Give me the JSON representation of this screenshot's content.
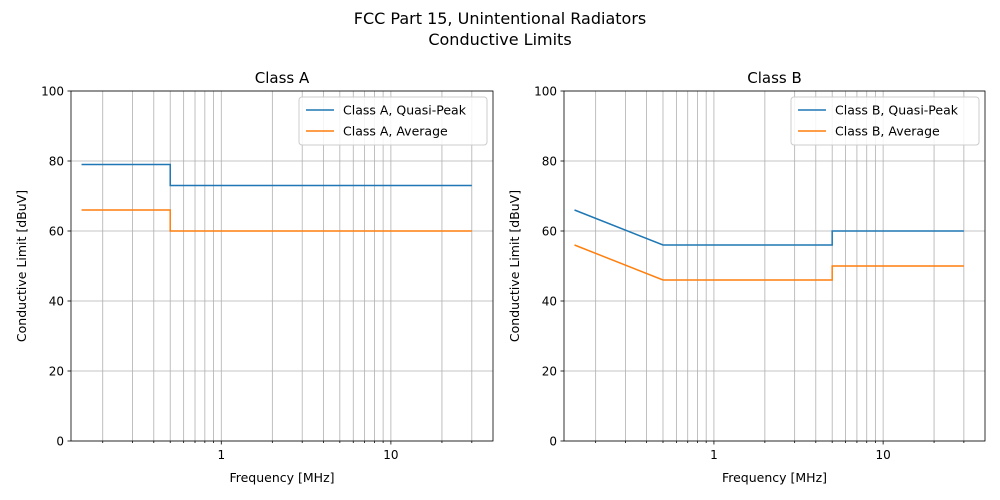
{
  "figure": {
    "title_line1": "FCC Part 15, Unintentional Radiators",
    "title_line2": "Conductive Limits"
  },
  "chart_data": [
    {
      "type": "line",
      "title": "Class A",
      "xlabel": "Frequency [MHz]",
      "ylabel": "Conductive Limit [dBuV]",
      "xscale": "log",
      "xlim": [
        0.13,
        40
      ],
      "ylim": [
        0,
        100
      ],
      "x_ticks": [
        1,
        10
      ],
      "x_tick_labels": [
        "1",
        "10"
      ],
      "y_ticks": [
        0,
        20,
        40,
        60,
        80,
        100
      ],
      "y_tick_labels": [
        "0",
        "20",
        "40",
        "60",
        "80",
        "100"
      ],
      "grid": true,
      "legend_position": "top-right",
      "series": [
        {
          "name": "Class A, Quasi-Peak",
          "color": "#1f77b4",
          "points": [
            [
              0.15,
              79
            ],
            [
              0.5,
              79
            ],
            [
              0.5,
              73
            ],
            [
              30,
              73
            ]
          ]
        },
        {
          "name": "Class A, Average",
          "color": "#ff7f0e",
          "points": [
            [
              0.15,
              66
            ],
            [
              0.5,
              66
            ],
            [
              0.5,
              60
            ],
            [
              30,
              60
            ]
          ]
        }
      ]
    },
    {
      "type": "line",
      "title": "Class B",
      "xlabel": "Frequency [MHz]",
      "ylabel": "Conductive Limit [dBuV]",
      "xscale": "log",
      "xlim": [
        0.13,
        40
      ],
      "ylim": [
        0,
        100
      ],
      "x_ticks": [
        1,
        10
      ],
      "x_tick_labels": [
        "1",
        "10"
      ],
      "y_ticks": [
        0,
        20,
        40,
        60,
        80,
        100
      ],
      "y_tick_labels": [
        "0",
        "20",
        "40",
        "60",
        "80",
        "100"
      ],
      "grid": true,
      "legend_position": "top-right",
      "series": [
        {
          "name": "Class B, Quasi-Peak",
          "color": "#1f77b4",
          "points": [
            [
              0.15,
              66
            ],
            [
              0.5,
              56
            ],
            [
              5,
              56
            ],
            [
              5,
              60
            ],
            [
              30,
              60
            ]
          ]
        },
        {
          "name": "Class B, Average",
          "color": "#ff7f0e",
          "points": [
            [
              0.15,
              56
            ],
            [
              0.5,
              46
            ],
            [
              5,
              46
            ],
            [
              5,
              50
            ],
            [
              30,
              50
            ]
          ]
        }
      ]
    }
  ]
}
